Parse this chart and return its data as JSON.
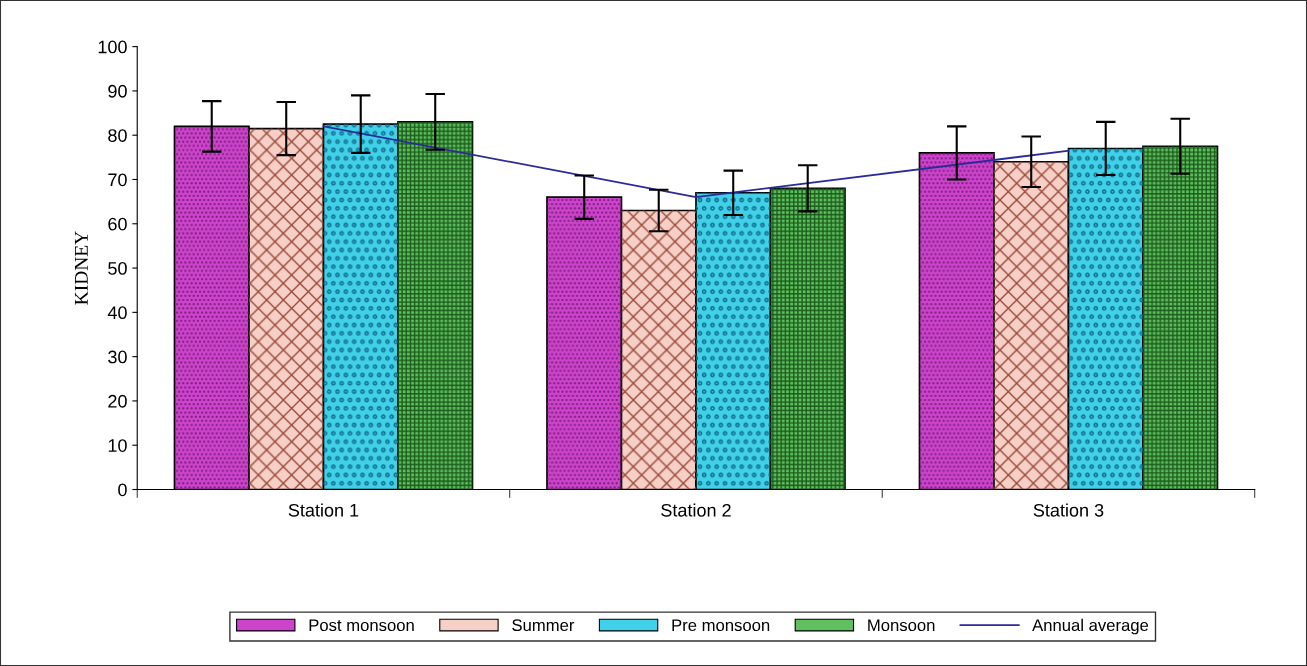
{
  "chart_data": {
    "type": "bar",
    "ylabel": "KIDNEY",
    "categories": [
      "Station 1",
      "Station 2",
      "Station 3"
    ],
    "ylim": [
      0,
      100
    ],
    "yticks": [
      0,
      10,
      20,
      30,
      40,
      50,
      60,
      70,
      80,
      90,
      100
    ],
    "grid": false,
    "legend": "bottom",
    "series": [
      {
        "name": "Post monsoon",
        "color": "#cc44cc",
        "values": [
          82,
          66,
          76
        ],
        "errors": [
          5.7,
          4.9,
          6
        ]
      },
      {
        "name": "Summer",
        "color": "#f6cfc6",
        "values": [
          81.5,
          63,
          74
        ],
        "errors": [
          6,
          4.7,
          5.7
        ]
      },
      {
        "name": "Pre monsoon",
        "color": "#40d0e8",
        "values": [
          82.5,
          67,
          77
        ],
        "errors": [
          6.5,
          5,
          6
        ]
      },
      {
        "name": "Monsoon",
        "color": "#60c060",
        "values": [
          83,
          68,
          77.5
        ],
        "errors": [
          6.3,
          5.2,
          6.2
        ]
      },
      {
        "name": "Annual average",
        "type": "line",
        "color": "#2a2a9a",
        "values": [
          82,
          66,
          76.5
        ]
      }
    ]
  }
}
